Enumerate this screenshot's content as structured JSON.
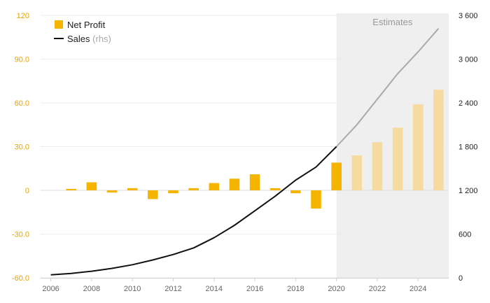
{
  "chart_data": {
    "type": "bar+line",
    "colors": {
      "bar": "#f5b400",
      "bar_estimate": "#f5dba0",
      "line": "#111111",
      "line_estimate": "#a9a9a9",
      "estimate_band": "#efefef",
      "left_axis": "#e8a400",
      "right_axis": "#222222"
    },
    "legend": {
      "position": "top-left",
      "items": [
        {
          "label": "Net Profit",
          "sub": "",
          "symbol": "square"
        },
        {
          "label": "Sales",
          "sub": "(rhs)",
          "symbol": "line"
        }
      ]
    },
    "estimate_label": "Estimates",
    "estimate_start": 2020,
    "estimate_end": 2025.5,
    "x": {
      "min": 2005.5,
      "max": 2025.5,
      "ticks": [
        2006,
        2008,
        2010,
        2012,
        2014,
        2016,
        2018,
        2020,
        2022,
        2024
      ]
    },
    "y_left": {
      "min": -60,
      "max": 120,
      "ticks": [
        -60,
        -30,
        0,
        30,
        60,
        90,
        120
      ],
      "tick_labels": [
        "-60.0",
        "-30.0",
        "0",
        "30.0",
        "60.0",
        "90.0",
        "120"
      ]
    },
    "y_right": {
      "min": 0,
      "max": 3600,
      "ticks": [
        0,
        600,
        1200,
        1800,
        2400,
        3000,
        3600
      ],
      "tick_labels": [
        "0",
        "600",
        "1 200",
        "1 800",
        "2 400",
        "3 000",
        "3 600"
      ]
    },
    "series": [
      {
        "name": "Net Profit",
        "axis": "left",
        "kind": "bar",
        "x": [
          2007,
          2008,
          2009,
          2010,
          2011,
          2012,
          2013,
          2014,
          2015,
          2016,
          2017,
          2018,
          2019,
          2020,
          2021,
          2022,
          2023,
          2024,
          2025
        ],
        "values": [
          1,
          5.5,
          -1.5,
          1.5,
          -6,
          -2,
          1.5,
          5,
          8,
          11,
          1.5,
          -2,
          -12.5,
          19,
          24,
          33,
          43,
          59,
          69
        ],
        "estimate_from": 2021
      },
      {
        "name": "Sales",
        "axis": "right",
        "kind": "line",
        "x": [
          2006,
          2007,
          2008,
          2009,
          2010,
          2011,
          2012,
          2013,
          2014,
          2015,
          2016,
          2017,
          2018,
          2019,
          2020,
          2021,
          2022,
          2023,
          2024,
          2025
        ],
        "values": [
          40,
          60,
          90,
          130,
          180,
          245,
          320,
          410,
          550,
          720,
          920,
          1120,
          1340,
          1520,
          1800,
          2100,
          2450,
          2800,
          3100,
          3420
        ],
        "estimate_from": 2020
      }
    ]
  }
}
